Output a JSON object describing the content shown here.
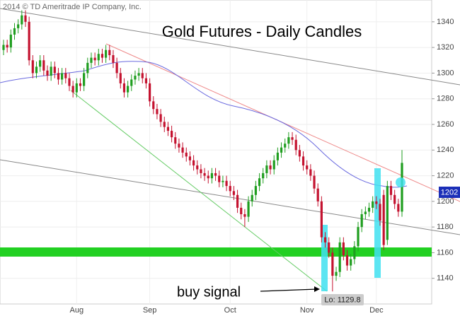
{
  "chart_data": {
    "type": "candlestick",
    "title": "Gold Futures - Daily Candles",
    "source": "2014 © TD Ameritrade IP Company, Inc.",
    "annotations": [
      "buy signal",
      "Lo: 1129.8",
      "1202"
    ],
    "up_color": "#1f9e1f",
    "down_color": "#c4122f",
    "grid": true,
    "ylim": [
      1120,
      1357
    ],
    "yticks": [
      1140,
      1160,
      1180,
      1200,
      1220,
      1240,
      1260,
      1280,
      1300,
      1320,
      1340
    ],
    "categories": [
      null,
      null,
      null,
      null,
      null,
      null,
      null,
      null,
      null,
      null,
      null,
      null,
      null,
      null,
      null,
      null,
      null,
      null,
      null,
      null,
      "Aug",
      null,
      null,
      null,
      null,
      null,
      null,
      null,
      null,
      null,
      null,
      null,
      null,
      null,
      null,
      null,
      null,
      null,
      null,
      null,
      "Sep",
      null,
      null,
      null,
      null,
      null,
      null,
      null,
      null,
      null,
      null,
      null,
      null,
      null,
      null,
      null,
      null,
      null,
      null,
      null,
      null,
      null,
      "Oct",
      null,
      null,
      null,
      null,
      null,
      null,
      null,
      null,
      null,
      null,
      null,
      null,
      null,
      null,
      null,
      null,
      null,
      null,
      null,
      null,
      "Nov",
      null,
      null,
      null,
      null,
      null,
      null,
      null,
      null,
      null,
      null,
      null,
      null,
      null,
      null,
      null,
      null,
      null,
      null,
      "Dec",
      null,
      null,
      null,
      null,
      null,
      null,
      null
    ],
    "open": [
      1318,
      1322,
      1320,
      1330,
      1335,
      1338,
      1345,
      1340,
      1310,
      1300,
      1305,
      1310,
      1302,
      1298,
      1305,
      1300,
      1295,
      1300,
      1296,
      1290,
      1285,
      1292,
      1290,
      1300,
      1308,
      1312,
      1310,
      1315,
      1312,
      1318,
      1314,
      1308,
      1300,
      1292,
      1285,
      1290,
      1295,
      1298,
      1300,
      1296,
      1292,
      1278,
      1272,
      1268,
      1262,
      1258,
      1255,
      1250,
      1245,
      1242,
      1238,
      1235,
      1232,
      1228,
      1225,
      1222,
      1220,
      1218,
      1222,
      1220,
      1215,
      1216,
      1212,
      1208,
      1205,
      1195,
      1190,
      1188,
      1200,
      1205,
      1212,
      1218,
      1222,
      1228,
      1225,
      1232,
      1238,
      1242,
      1245,
      1250,
      1248,
      1240,
      1235,
      1228,
      1225,
      1220,
      1210,
      1200,
      1172,
      1168,
      1160,
      1142,
      1145,
      1168,
      1158,
      1150,
      1155,
      1165,
      1180,
      1190,
      1192,
      1195,
      1200,
      1198,
      1205,
      1170,
      1212,
      1205,
      1198,
      1192
    ],
    "high": [
      1326,
      1326,
      1334,
      1339,
      1342,
      1349,
      1349,
      1344,
      1314,
      1309,
      1314,
      1314,
      1306,
      1309,
      1309,
      1304,
      1304,
      1304,
      1300,
      1294,
      1296,
      1296,
      1304,
      1312,
      1316,
      1316,
      1319,
      1319,
      1322,
      1322,
      1318,
      1312,
      1304,
      1296,
      1294,
      1299,
      1302,
      1304,
      1304,
      1300,
      1296,
      1282,
      1276,
      1272,
      1266,
      1262,
      1259,
      1254,
      1249,
      1246,
      1242,
      1239,
      1236,
      1232,
      1229,
      1226,
      1224,
      1226,
      1226,
      1224,
      1220,
      1220,
      1216,
      1212,
      1209,
      1199,
      1194,
      1204,
      1209,
      1216,
      1222,
      1226,
      1232,
      1232,
      1236,
      1242,
      1246,
      1249,
      1254,
      1254,
      1252,
      1244,
      1239,
      1232,
      1229,
      1224,
      1214,
      1204,
      1176,
      1172,
      1164,
      1149,
      1172,
      1172,
      1162,
      1159,
      1169,
      1184,
      1194,
      1196,
      1199,
      1204,
      1204,
      1202,
      1209,
      1216,
      1216,
      1209,
      1202,
      1240
    ],
    "low": [
      1314,
      1316,
      1316,
      1326,
      1331,
      1334,
      1336,
      1306,
      1296,
      1296,
      1301,
      1298,
      1294,
      1294,
      1296,
      1291,
      1291,
      1292,
      1286,
      1281,
      1281,
      1286,
      1286,
      1296,
      1304,
      1306,
      1306,
      1308,
      1308,
      1310,
      1304,
      1296,
      1288,
      1281,
      1281,
      1286,
      1291,
      1294,
      1292,
      1288,
      1274,
      1268,
      1264,
      1258,
      1254,
      1251,
      1246,
      1241,
      1238,
      1234,
      1231,
      1228,
      1224,
      1221,
      1218,
      1216,
      1214,
      1214,
      1216,
      1211,
      1211,
      1208,
      1204,
      1201,
      1191,
      1186,
      1180,
      1184,
      1196,
      1201,
      1208,
      1214,
      1218,
      1221,
      1221,
      1228,
      1234,
      1238,
      1241,
      1244,
      1236,
      1231,
      1224,
      1221,
      1216,
      1206,
      1196,
      1168,
      1164,
      1156,
      1129.8,
      1138,
      1141,
      1154,
      1146,
      1146,
      1151,
      1161,
      1176,
      1186,
      1188,
      1191,
      1194,
      1181,
      1162,
      1166,
      1201,
      1194,
      1188,
      1188
    ],
    "close": [
      1322,
      1320,
      1330,
      1335,
      1338,
      1345,
      1340,
      1310,
      1300,
      1305,
      1310,
      1302,
      1298,
      1305,
      1300,
      1295,
      1300,
      1296,
      1290,
      1285,
      1292,
      1290,
      1300,
      1308,
      1312,
      1310,
      1315,
      1312,
      1318,
      1314,
      1308,
      1300,
      1292,
      1285,
      1290,
      1295,
      1298,
      1300,
      1296,
      1292,
      1278,
      1272,
      1268,
      1262,
      1258,
      1255,
      1250,
      1245,
      1242,
      1238,
      1235,
      1232,
      1228,
      1225,
      1222,
      1220,
      1218,
      1222,
      1220,
      1215,
      1216,
      1212,
      1208,
      1205,
      1195,
      1190,
      1188,
      1200,
      1205,
      1212,
      1218,
      1222,
      1228,
      1225,
      1232,
      1238,
      1242,
      1245,
      1250,
      1248,
      1240,
      1235,
      1228,
      1225,
      1220,
      1210,
      1200,
      1172,
      1168,
      1160,
      1142,
      1145,
      1168,
      1158,
      1150,
      1155,
      1165,
      1180,
      1190,
      1192,
      1195,
      1200,
      1198,
      1185,
      1166,
      1212,
      1205,
      1198,
      1192,
      1230
    ]
  }
}
